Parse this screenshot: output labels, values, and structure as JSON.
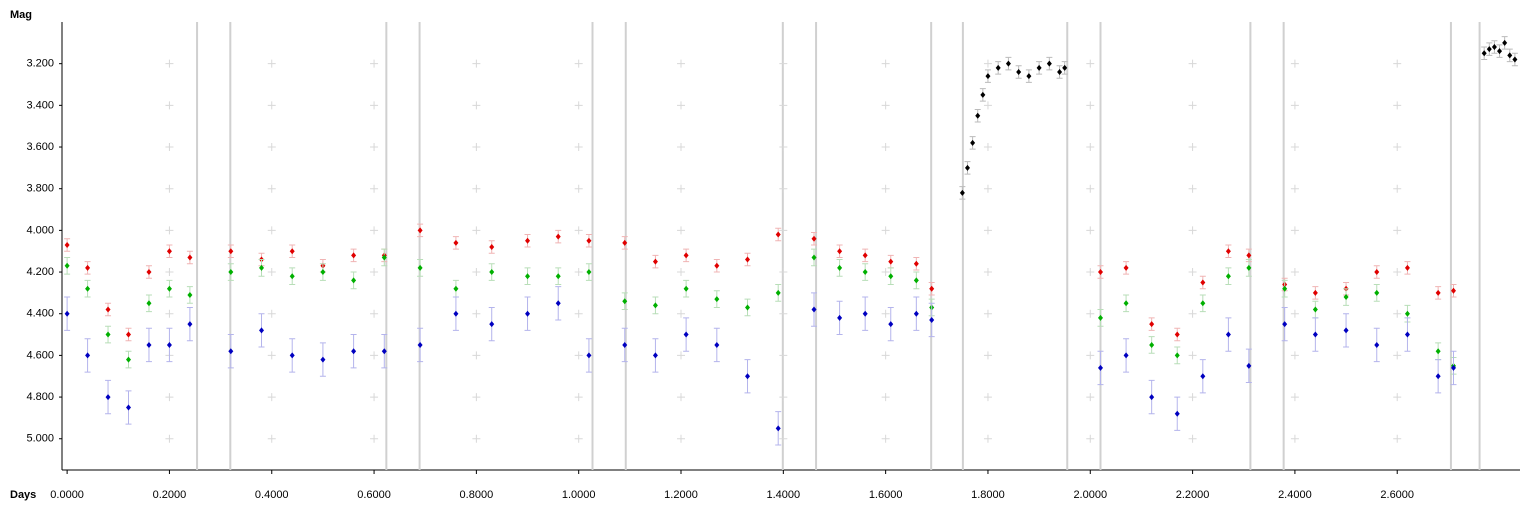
{
  "chart_data": {
    "type": "scatter",
    "x_label": "Days",
    "y_label": "Mag",
    "xlim": [
      -0.01,
      2.84
    ],
    "ylim": [
      5.15,
      3.0
    ],
    "y_inverted": true,
    "xticks": [
      {
        "value": 0,
        "label": "0.0000"
      },
      {
        "value": 0.2,
        "label": "0.2000"
      },
      {
        "value": 0.4,
        "label": "0.4000"
      },
      {
        "value": 0.6,
        "label": "0.6000"
      },
      {
        "value": 0.8,
        "label": "0.8000"
      },
      {
        "value": 1.0,
        "label": "1.0000"
      },
      {
        "value": 1.2,
        "label": "1.2000"
      },
      {
        "value": 1.4,
        "label": "1.4000"
      },
      {
        "value": 1.6,
        "label": "1.6000"
      },
      {
        "value": 1.8,
        "label": "1.8000"
      },
      {
        "value": 2.0,
        "label": "2.0000"
      },
      {
        "value": 2.2,
        "label": "2.2000"
      },
      {
        "value": 2.4,
        "label": "2.4000"
      },
      {
        "value": 2.6,
        "label": "2.6000"
      }
    ],
    "yticks": [
      {
        "value": 3.2,
        "label": "3.200"
      },
      {
        "value": 3.4,
        "label": "3.400"
      },
      {
        "value": 3.6,
        "label": "3.600"
      },
      {
        "value": 3.8,
        "label": "3.800"
      },
      {
        "value": 4.0,
        "label": "4.000"
      },
      {
        "value": 4.2,
        "label": "4.200"
      },
      {
        "value": 4.4,
        "label": "4.400"
      },
      {
        "value": 4.6,
        "label": "4.600"
      },
      {
        "value": 4.8,
        "label": "4.800"
      },
      {
        "value": 5.0,
        "label": "5.000"
      }
    ],
    "grid": true,
    "dividers": [
      0.254,
      0.319,
      0.624,
      0.689,
      1.027,
      1.092,
      1.399,
      1.464,
      1.689,
      1.751,
      1.955,
      2.02,
      2.313,
      2.378,
      2.705,
      2.761
    ],
    "series": [
      {
        "color": "#e00000",
        "error_color": "#f0b4b4",
        "error": 0.03,
        "x": [
          0,
          0.04,
          0.08,
          0.12,
          0.16,
          0.2,
          0.24,
          0.32,
          0.38,
          0.44,
          0.5,
          0.56,
          0.62,
          0.69,
          0.76,
          0.83,
          0.9,
          0.96,
          1.02,
          1.09,
          1.15,
          1.21,
          1.27,
          1.33,
          1.39,
          1.46,
          1.51,
          1.56,
          1.61,
          1.66,
          1.69,
          2.02,
          2.07,
          2.12,
          2.17,
          2.22,
          2.27,
          2.31,
          2.38,
          2.44,
          2.5,
          2.56,
          2.62,
          2.68,
          2.71
        ],
        "values": [
          4.07,
          4.18,
          4.38,
          4.5,
          4.2,
          4.1,
          4.13,
          4.1,
          4.14,
          4.1,
          4.17,
          4.12,
          4.12,
          4.0,
          4.06,
          4.08,
          4.05,
          4.03,
          4.05,
          4.06,
          4.15,
          4.12,
          4.17,
          4.14,
          4.02,
          4.04,
          4.1,
          4.12,
          4.15,
          4.16,
          4.28,
          4.2,
          4.18,
          4.45,
          4.5,
          4.25,
          4.1,
          4.12,
          4.26,
          4.3,
          4.28,
          4.2,
          4.18,
          4.3,
          4.29
        ]
      },
      {
        "color": "#00b000",
        "error_color": "#b8deb8",
        "error": 0.04,
        "x": [
          0,
          0.04,
          0.08,
          0.12,
          0.16,
          0.2,
          0.24,
          0.32,
          0.38,
          0.44,
          0.5,
          0.56,
          0.62,
          0.69,
          0.76,
          0.83,
          0.9,
          0.96,
          1.02,
          1.09,
          1.15,
          1.21,
          1.27,
          1.33,
          1.39,
          1.46,
          1.51,
          1.56,
          1.61,
          1.66,
          1.69,
          2.02,
          2.07,
          2.12,
          2.17,
          2.22,
          2.27,
          2.31,
          2.38,
          2.44,
          2.5,
          2.56,
          2.62,
          2.68,
          2.71
        ],
        "values": [
          4.17,
          4.28,
          4.5,
          4.62,
          4.35,
          4.28,
          4.31,
          4.2,
          4.18,
          4.22,
          4.2,
          4.24,
          4.13,
          4.18,
          4.28,
          4.2,
          4.22,
          4.22,
          4.2,
          4.34,
          4.36,
          4.28,
          4.33,
          4.37,
          4.3,
          4.13,
          4.18,
          4.2,
          4.22,
          4.24,
          4.37,
          4.42,
          4.35,
          4.55,
          4.6,
          4.35,
          4.22,
          4.18,
          4.28,
          4.38,
          4.32,
          4.3,
          4.4,
          4.58,
          4.65
        ]
      },
      {
        "color": "#0000c0",
        "error_color": "#b4b4ec",
        "error": 0.08,
        "x": [
          0,
          0.04,
          0.08,
          0.12,
          0.16,
          0.2,
          0.24,
          0.32,
          0.38,
          0.44,
          0.5,
          0.56,
          0.62,
          0.69,
          0.76,
          0.83,
          0.9,
          0.96,
          1.02,
          1.09,
          1.15,
          1.21,
          1.27,
          1.33,
          1.39,
          1.46,
          1.51,
          1.56,
          1.61,
          1.66,
          1.69,
          2.02,
          2.07,
          2.12,
          2.17,
          2.22,
          2.27,
          2.31,
          2.38,
          2.44,
          2.5,
          2.56,
          2.62,
          2.68,
          2.71
        ],
        "values": [
          4.4,
          4.6,
          4.8,
          4.85,
          4.55,
          4.55,
          4.45,
          4.58,
          4.48,
          4.6,
          4.62,
          4.58,
          4.58,
          4.55,
          4.4,
          4.45,
          4.4,
          4.35,
          4.6,
          4.55,
          4.6,
          4.5,
          4.55,
          4.7,
          4.95,
          4.38,
          4.42,
          4.4,
          4.45,
          4.4,
          4.43,
          4.66,
          4.6,
          4.8,
          4.88,
          4.7,
          4.5,
          4.65,
          4.45,
          4.5,
          4.48,
          4.55,
          4.5,
          4.7,
          4.66
        ]
      },
      {
        "color": "#000000",
        "error_color": "#bbbbbb",
        "error": 0.03,
        "x": [
          1.75,
          1.76,
          1.77,
          1.78,
          1.79,
          1.8,
          1.82,
          1.84,
          1.86,
          1.88,
          1.9,
          1.92,
          1.94,
          1.95,
          2.77,
          2.78,
          2.79,
          2.8,
          2.81,
          2.82,
          2.83
        ],
        "values": [
          3.82,
          3.7,
          3.58,
          3.45,
          3.35,
          3.26,
          3.22,
          3.2,
          3.24,
          3.26,
          3.22,
          3.2,
          3.24,
          3.22,
          3.15,
          3.13,
          3.12,
          3.14,
          3.1,
          3.16,
          3.18
        ]
      }
    ]
  }
}
